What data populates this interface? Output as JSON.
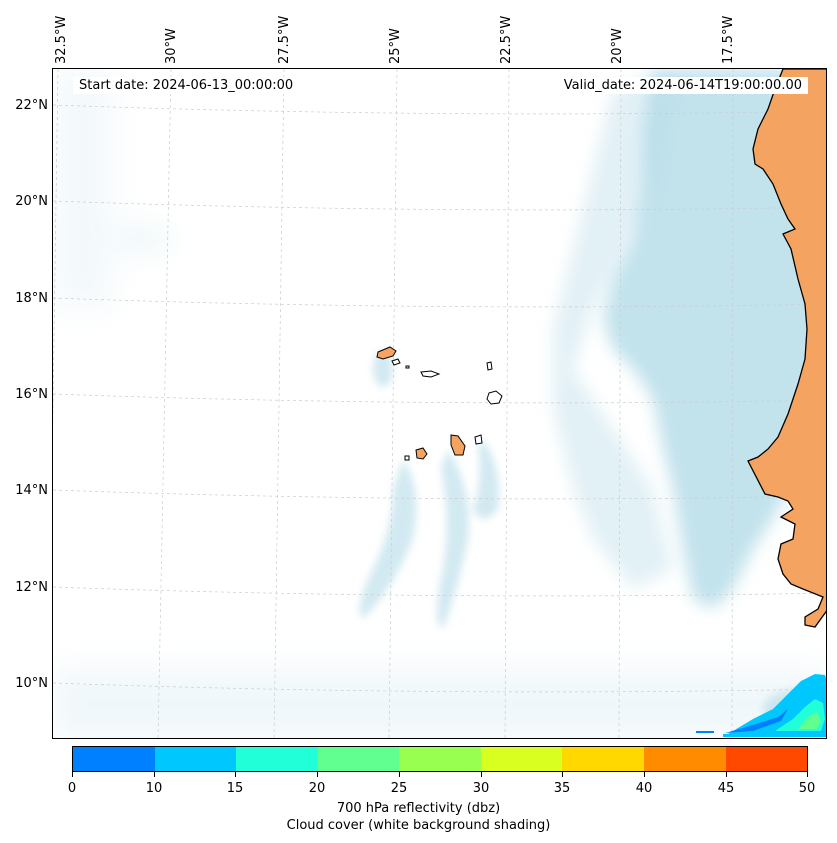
{
  "map": {
    "start_date": "Start date: 2024-06-13_00:00:00",
    "valid_date": "Valid_date: 2024-06-14T19:00:00.00",
    "lon_labels": [
      "32.5°W",
      "30°W",
      "27.5°W",
      "25°W",
      "22.5°W",
      "20°W",
      "17.5°W"
    ],
    "lat_labels": [
      "22°N",
      "20°N",
      "18°N",
      "16°N",
      "14°N",
      "12°N",
      "10°N"
    ],
    "colors": {
      "cloud": "#add8e6",
      "land": "#f4a460",
      "coast": "#000000",
      "grid": "#cccccc"
    }
  },
  "colorbar": {
    "ticks": [
      "0",
      "10",
      "15",
      "20",
      "25",
      "30",
      "35",
      "40",
      "45",
      "50"
    ],
    "colors": [
      "#0080ff",
      "#00c8ff",
      "#20ffd8",
      "#60ff90",
      "#98ff50",
      "#d8ff20",
      "#ffd800",
      "#ff8c00",
      "#ff4800"
    ],
    "title_line1": "700 hPa reflectivity (dbz)",
    "title_line2": "Cloud cover (white background shading)"
  }
}
